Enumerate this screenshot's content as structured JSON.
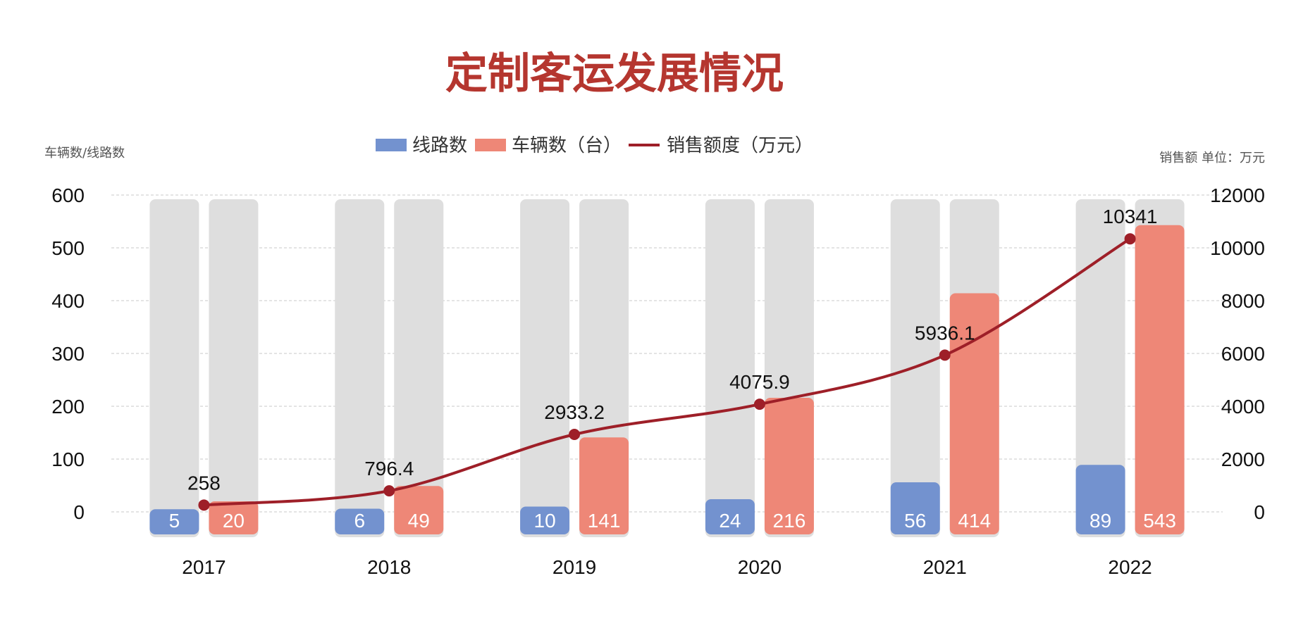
{
  "chart_data": {
    "type": "bar",
    "title": "定制客运发展情况",
    "categories": [
      "2017",
      "2018",
      "2019",
      "2020",
      "2021",
      "2022"
    ],
    "series": [
      {
        "name": "线路数",
        "type": "bar",
        "axis": "left",
        "color": "#7392cf",
        "values": [
          5,
          6,
          10,
          24,
          56,
          89
        ]
      },
      {
        "name": "车辆数（台）",
        "type": "bar",
        "axis": "left",
        "color": "#ee8777",
        "values": [
          20,
          49,
          141,
          216,
          414,
          543
        ]
      },
      {
        "name": "销售额度（万元）",
        "type": "line",
        "axis": "right",
        "color": "#9e1f28",
        "values": [
          258,
          796.4,
          2933.2,
          4075.9,
          5936.1,
          10341
        ]
      }
    ],
    "y_left": {
      "label": "车辆数/线路数",
      "range": [
        0,
        600
      ],
      "ticks": [
        "0",
        "100",
        "200",
        "300",
        "400",
        "500",
        "600"
      ]
    },
    "y_right": {
      "label": "销售额 单位：万元",
      "range": [
        0,
        12000
      ],
      "ticks": [
        "0",
        "2000",
        "4000",
        "6000",
        "8000",
        "10000",
        "12000"
      ]
    },
    "background_bar_color": "#dedede",
    "grid": true,
    "legend_position": "top-center"
  }
}
